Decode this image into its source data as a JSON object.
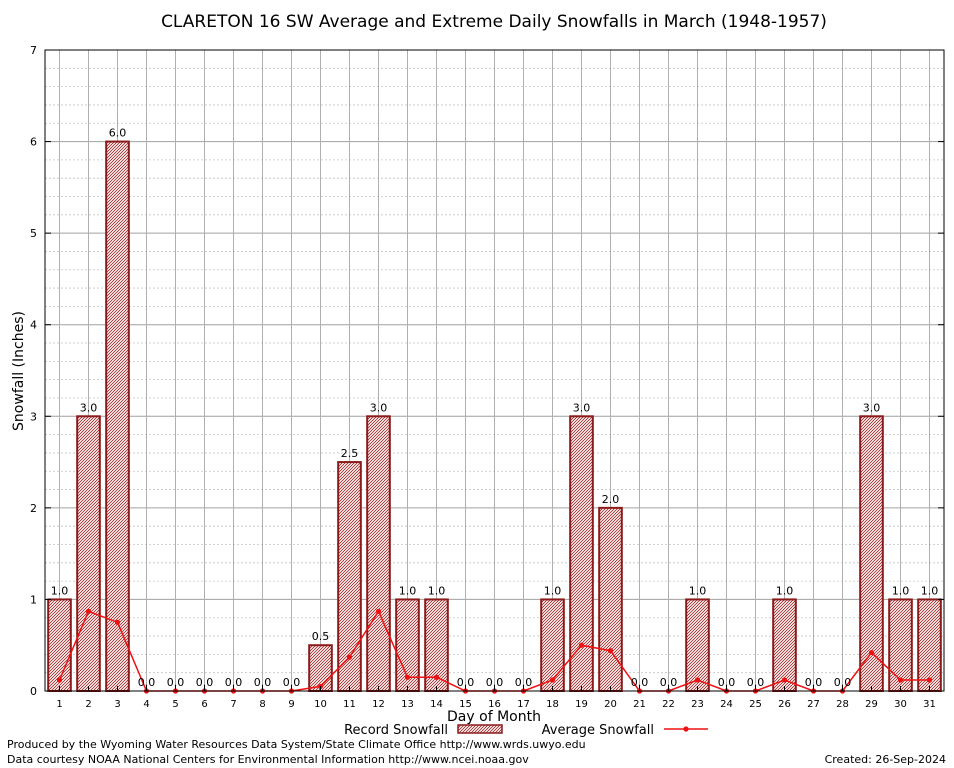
{
  "chart_data": {
    "type": "bar",
    "title": "CLARETON 16 SW Average and Extreme Daily Snowfalls in March (1948-1957)",
    "xlabel": "Day of Month",
    "ylabel": "Snowfall (Inches)",
    "ylim": [
      0,
      7
    ],
    "yticks": [
      0,
      1,
      2,
      3,
      4,
      5,
      6,
      7
    ],
    "categories": [
      "1",
      "2",
      "3",
      "4",
      "5",
      "6",
      "7",
      "8",
      "9",
      "10",
      "11",
      "12",
      "13",
      "14",
      "15",
      "16",
      "17",
      "18",
      "19",
      "20",
      "21",
      "22",
      "23",
      "24",
      "25",
      "26",
      "27",
      "28",
      "29",
      "30",
      "31"
    ],
    "series": [
      {
        "name": "Record Snowfall",
        "kind": "bar",
        "color": "#8b1a1a",
        "values": [
          1.0,
          3.0,
          6.0,
          0.0,
          0.0,
          0.0,
          0.0,
          0.0,
          0.0,
          0.5,
          2.5,
          3.0,
          1.0,
          1.0,
          0.0,
          0.0,
          0.0,
          1.0,
          3.0,
          2.0,
          0.0,
          0.0,
          1.0,
          0.0,
          0.0,
          1.0,
          0.0,
          0.0,
          3.0,
          1.0,
          1.0
        ],
        "labels": [
          "1.0",
          "3.0",
          "6.0",
          "0.0",
          "0.0",
          "0.0",
          "0.0",
          "0.0",
          "0.0",
          "0.5",
          "2.5",
          "3.0",
          "1.0",
          "1.0",
          "0.0",
          "0.0",
          "0.0",
          "1.0",
          "3.0",
          "2.0",
          "0.0",
          "0.0",
          "1.0",
          "0.0",
          "0.0",
          "1.0",
          "0.0",
          "0.0",
          "3.0",
          "1.0",
          "1.0"
        ]
      },
      {
        "name": "Average Snowfall",
        "kind": "line",
        "color": "#ee1111",
        "values": [
          0.12,
          0.87,
          0.75,
          0.0,
          0.0,
          0.0,
          0.0,
          0.0,
          0.0,
          0.05,
          0.37,
          0.87,
          0.15,
          0.15,
          0.0,
          0.0,
          0.0,
          0.12,
          0.5,
          0.44,
          0.0,
          0.0,
          0.12,
          0.0,
          0.0,
          0.12,
          0.0,
          0.0,
          0.42,
          0.12,
          0.12
        ]
      }
    ],
    "grid": true,
    "legend_position": "bottom-center"
  },
  "footer": {
    "credit_line_1": "Produced by the Wyoming Water Resources Data System/State Climate Office http://www.wrds.uwyo.edu",
    "credit_line_2": "Data courtesy NOAA National Centers for Environmental Information http://www.ncei.noaa.gov",
    "created": "Created: 26-Sep-2024"
  }
}
